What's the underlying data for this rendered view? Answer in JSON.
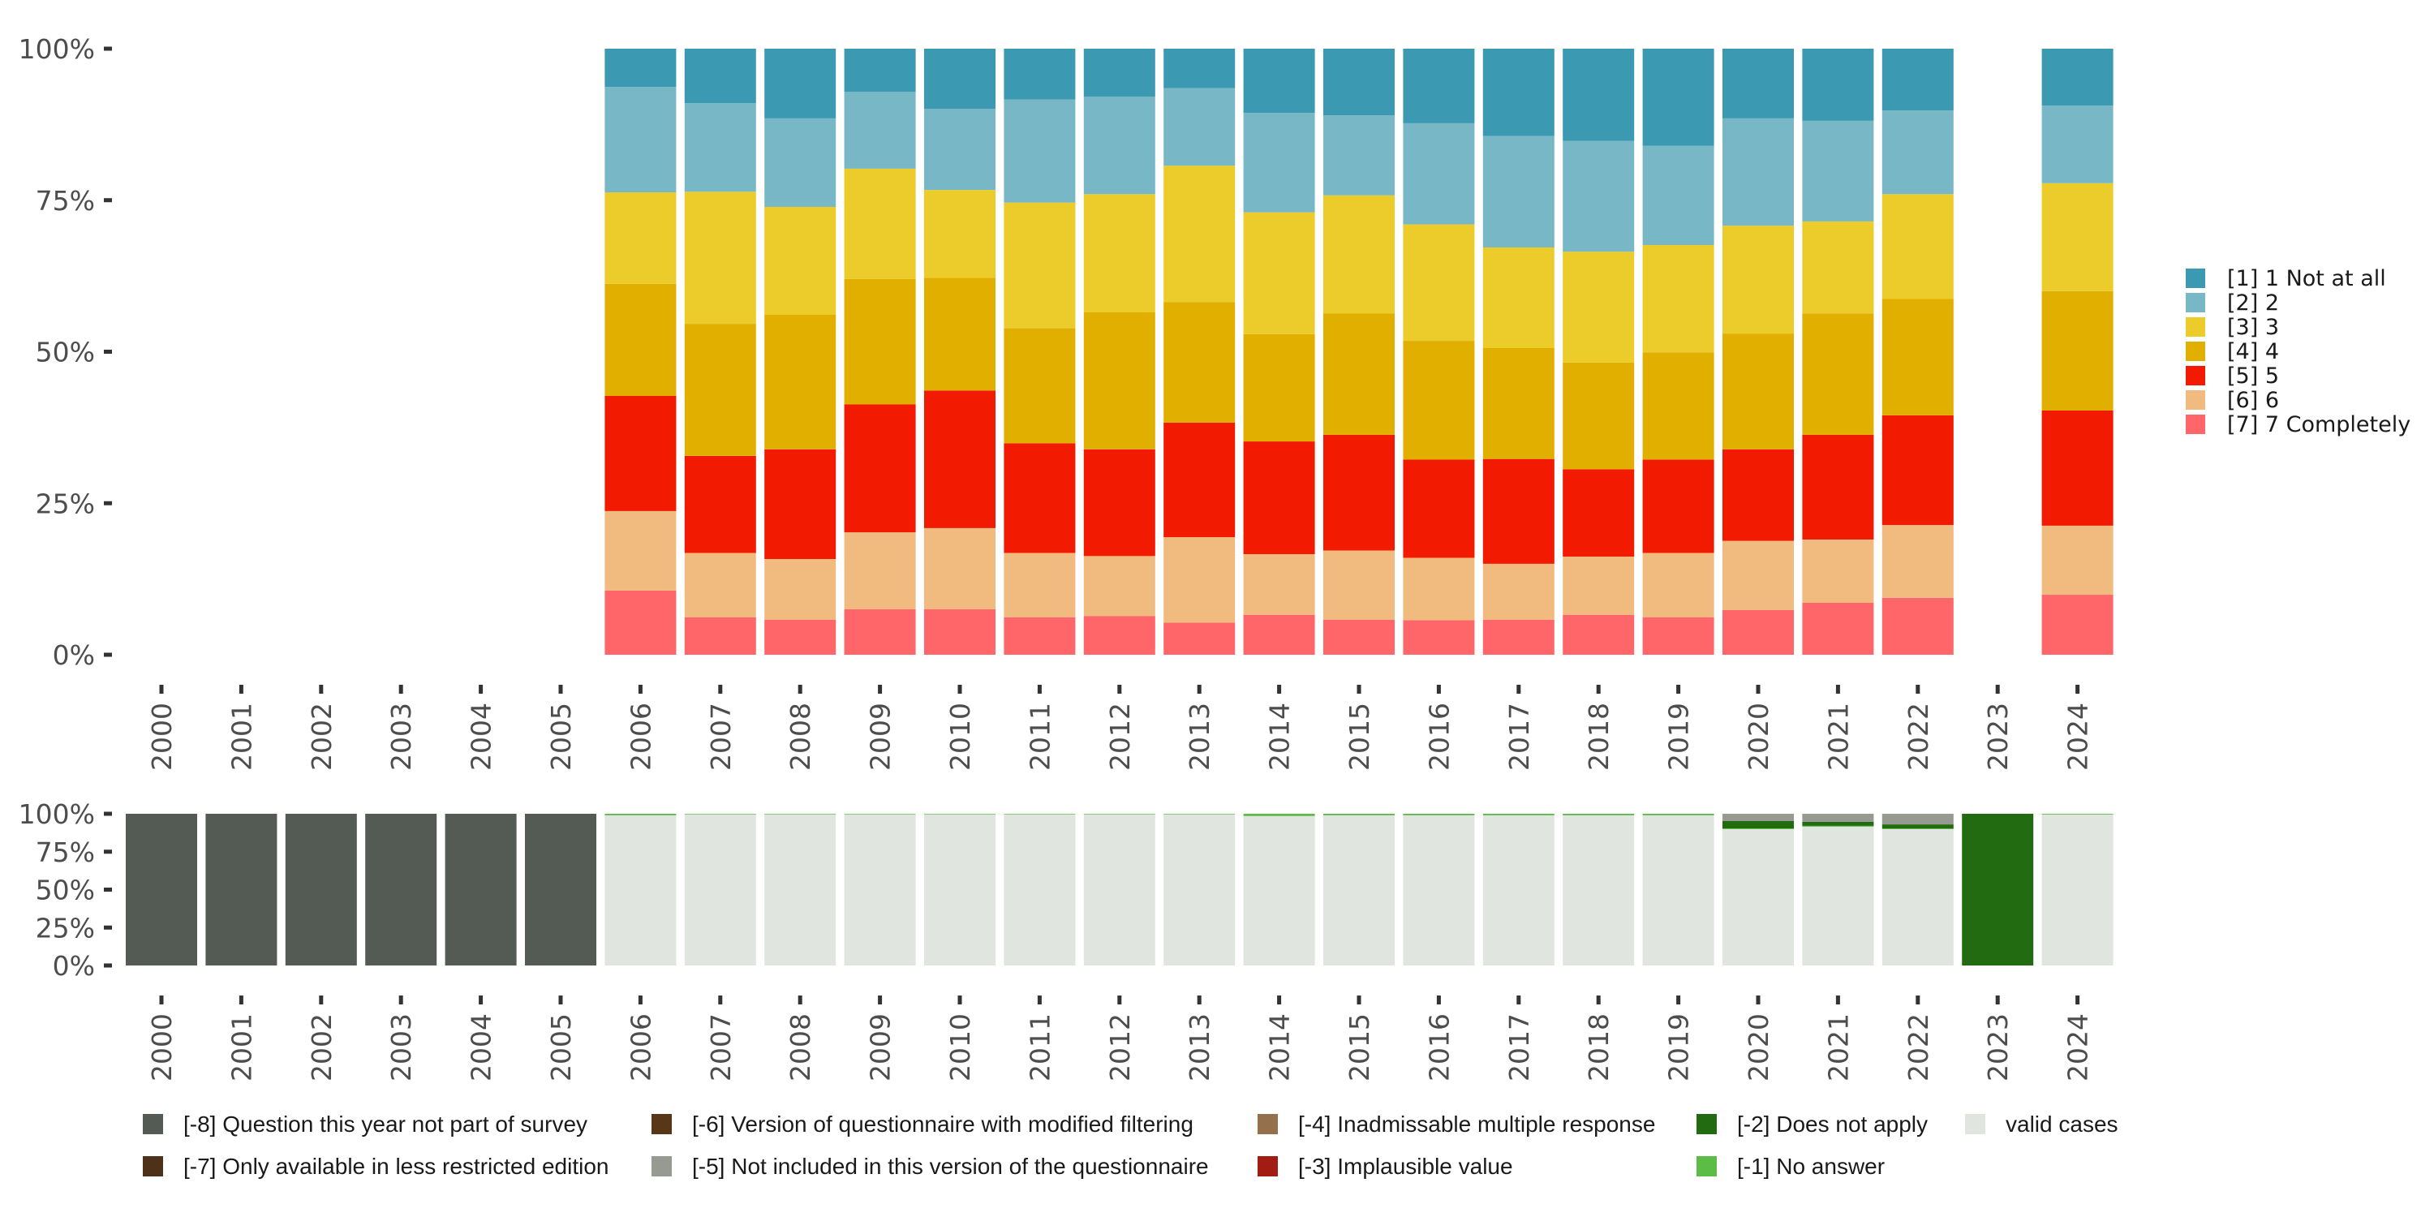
{
  "chart_data": [
    {
      "name": "responses",
      "type": "bar",
      "stacked": "percent",
      "title": "",
      "xlabel": "",
      "ylabel": "",
      "ylim": [
        0,
        100
      ],
      "ytick_labels": [
        "0%",
        "25%",
        "50%",
        "75%",
        "100%"
      ],
      "yticks": [
        0,
        25,
        50,
        75,
        100
      ],
      "grid": false,
      "legend_position": "right",
      "categories": [
        "2000",
        "2001",
        "2002",
        "2003",
        "2004",
        "2005",
        "2006",
        "2007",
        "2008",
        "2009",
        "2010",
        "2011",
        "2012",
        "2013",
        "2014",
        "2015",
        "2016",
        "2017",
        "2018",
        "2019",
        "2020",
        "2021",
        "2022",
        "2023",
        "2024"
      ],
      "series": [
        {
          "name": "[7] 7 Completely",
          "color": "#ff6669",
          "values": [
            null,
            null,
            null,
            null,
            null,
            null,
            10.6,
            6.2,
            5.8,
            7.5,
            7.5,
            6.2,
            6.4,
            5.3,
            6.6,
            5.8,
            5.7,
            5.8,
            6.6,
            6.2,
            7.4,
            8.6,
            9.4,
            null,
            9.9
          ]
        },
        {
          "name": "[6] 6",
          "color": "#f1bb7f",
          "values": [
            null,
            null,
            null,
            null,
            null,
            null,
            13.1,
            10.6,
            10.0,
            12.7,
            13.4,
            10.6,
            9.9,
            14.1,
            10.0,
            11.4,
            10.3,
            9.2,
            9.6,
            10.6,
            11.4,
            10.4,
            12.0,
            null,
            11.4
          ]
        },
        {
          "name": "[5] 5",
          "color": "#f21a00",
          "values": [
            null,
            null,
            null,
            null,
            null,
            null,
            19.0,
            16.0,
            18.1,
            21.1,
            22.7,
            18.1,
            17.6,
            18.9,
            18.6,
            19.1,
            16.2,
            17.3,
            14.4,
            15.4,
            15.1,
            17.3,
            18.1,
            null,
            19.0
          ]
        },
        {
          "name": "[4] 4",
          "color": "#e1af00",
          "values": [
            null,
            null,
            null,
            null,
            null,
            null,
            18.5,
            21.8,
            22.2,
            20.7,
            18.6,
            19.0,
            22.6,
            19.9,
            17.7,
            20.0,
            19.6,
            18.3,
            17.6,
            17.7,
            19.1,
            20.0,
            19.2,
            null,
            19.7
          ]
        },
        {
          "name": "[3] 3",
          "color": "#ebcc2a",
          "values": [
            null,
            null,
            null,
            null,
            null,
            null,
            15.1,
            21.8,
            17.8,
            18.2,
            14.5,
            20.7,
            19.5,
            22.5,
            20.1,
            19.5,
            19.2,
            16.6,
            18.3,
            17.7,
            17.8,
            15.2,
            17.3,
            null,
            17.8
          ]
        },
        {
          "name": "[2] 2",
          "color": "#78b7c5",
          "values": [
            null,
            null,
            null,
            null,
            null,
            null,
            17.4,
            14.6,
            14.6,
            12.7,
            13.4,
            17.0,
            16.1,
            12.8,
            16.4,
            13.2,
            16.7,
            18.4,
            18.3,
            16.4,
            17.7,
            16.6,
            13.8,
            null,
            12.8
          ]
        },
        {
          "name": "[1] 1 Not at all",
          "color": "#3b9ab2",
          "values": [
            null,
            null,
            null,
            null,
            null,
            null,
            6.3,
            9.0,
            11.5,
            7.1,
            9.9,
            8.4,
            7.9,
            6.5,
            10.6,
            11.0,
            12.3,
            14.4,
            15.2,
            16.0,
            11.5,
            11.9,
            10.2,
            null,
            9.4
          ]
        }
      ],
      "legend": [
        {
          "label": "[1] 1 Not at all",
          "color": "#3b9ab2"
        },
        {
          "label": "[2] 2",
          "color": "#78b7c5"
        },
        {
          "label": "[3] 3",
          "color": "#ebcc2a"
        },
        {
          "label": "[4] 4",
          "color": "#e1af00"
        },
        {
          "label": "[5] 5",
          "color": "#f21a00"
        },
        {
          "label": "[6] 6",
          "color": "#f1bb7f"
        },
        {
          "label": "[7] 7 Completely",
          "color": "#ff6669"
        }
      ]
    },
    {
      "name": "missing-values",
      "type": "bar",
      "stacked": "percent",
      "title": "",
      "xlabel": "",
      "ylabel": "",
      "ylim": [
        0,
        100
      ],
      "ytick_labels": [
        "0%",
        "25%",
        "50%",
        "75%",
        "100%"
      ],
      "yticks": [
        0,
        25,
        50,
        75,
        100
      ],
      "grid": false,
      "legend_position": "bottom",
      "categories": [
        "2000",
        "2001",
        "2002",
        "2003",
        "2004",
        "2005",
        "2006",
        "2007",
        "2008",
        "2009",
        "2010",
        "2011",
        "2012",
        "2013",
        "2014",
        "2015",
        "2016",
        "2017",
        "2018",
        "2019",
        "2020",
        "2021",
        "2022",
        "2023",
        "2024"
      ],
      "series": [
        {
          "name": "valid cases",
          "color": "#e0e5e0",
          "values": [
            0,
            0,
            0,
            0,
            0,
            0,
            99.0,
            99.6,
            99.6,
            99.6,
            99.6,
            99.6,
            99.6,
            99.6,
            98.5,
            99.0,
            99.0,
            99.0,
            99.0,
            99.0,
            89.9,
            91.5,
            89.8,
            0,
            99.5
          ]
        },
        {
          "name": "[-1] No answer",
          "color": "#5bbc46",
          "values": [
            0,
            0,
            0,
            0,
            0,
            0,
            1.0,
            0.4,
            0.4,
            0.4,
            0.4,
            0.4,
            0.4,
            0.4,
            1.5,
            1.0,
            1.0,
            1.0,
            1.0,
            1.0,
            0.5,
            0.5,
            0.5,
            0,
            0.5
          ]
        },
        {
          "name": "[-2] Does not apply",
          "color": "#226b10",
          "values": [
            0,
            0,
            0,
            0,
            0,
            0,
            0,
            0,
            0,
            0,
            0,
            0,
            0,
            0,
            0,
            0,
            0,
            0,
            0,
            0,
            4.8,
            2.7,
            2.7,
            100,
            0
          ]
        },
        {
          "name": "[-3] Implausible value",
          "color": "#a31c14",
          "values": [
            0,
            0,
            0,
            0,
            0,
            0,
            0,
            0,
            0,
            0,
            0,
            0,
            0,
            0,
            0,
            0,
            0,
            0,
            0,
            0,
            0,
            0,
            0,
            0,
            0
          ]
        },
        {
          "name": "[-4] Inadmissable multiple response",
          "color": "#94704d",
          "values": [
            0,
            0,
            0,
            0,
            0,
            0,
            0,
            0,
            0,
            0,
            0,
            0,
            0,
            0,
            0,
            0,
            0,
            0,
            0,
            0,
            0,
            0,
            0,
            0,
            0
          ]
        },
        {
          "name": "[-5] Not included in this version of the questionnaire",
          "color": "#979a91",
          "values": [
            0,
            0,
            0,
            0,
            0,
            0,
            0,
            0,
            0,
            0,
            0,
            0,
            0,
            0,
            0,
            0,
            0,
            0,
            0,
            0,
            4.8,
            5.3,
            7.0,
            0,
            0
          ]
        },
        {
          "name": "[-6] Version of questionnaire with modified filtering",
          "color": "#583719",
          "values": [
            0,
            0,
            0,
            0,
            0,
            0,
            0,
            0,
            0,
            0,
            0,
            0,
            0,
            0,
            0,
            0,
            0,
            0,
            0,
            0,
            0,
            0,
            0,
            0,
            0
          ]
        },
        {
          "name": "[-7] Only available in less restricted edition",
          "color": "#4d3219",
          "values": [
            0,
            0,
            0,
            0,
            0,
            0,
            0,
            0,
            0,
            0,
            0,
            0,
            0,
            0,
            0,
            0,
            0,
            0,
            0,
            0,
            0,
            0,
            0,
            0,
            0
          ]
        },
        {
          "name": "[-8] Question this year not part of survey",
          "color": "#545a54",
          "values": [
            100,
            100,
            100,
            100,
            100,
            100,
            0,
            0,
            0,
            0,
            0,
            0,
            0,
            0,
            0,
            0,
            0,
            0,
            0,
            0,
            0,
            0,
            0,
            0,
            0
          ]
        }
      ],
      "legend": [
        {
          "label": "[-8] Question this year not part of survey",
          "color": "#545a54"
        },
        {
          "label": "[-7] Only available in less restricted edition",
          "color": "#4d3219"
        },
        {
          "label": "[-6] Version of questionnaire with modified filtering",
          "color": "#583719"
        },
        {
          "label": "[-5] Not included in this version of the questionnaire",
          "color": "#979a91"
        },
        {
          "label": "[-4] Inadmissable multiple response",
          "color": "#94704d"
        },
        {
          "label": "[-3] Implausible value",
          "color": "#a31c14"
        },
        {
          "label": "[-2] Does not apply",
          "color": "#226b10"
        },
        {
          "label": "[-1] No answer",
          "color": "#5bbc46"
        },
        {
          "label": "valid cases",
          "color": "#e0e5e0"
        }
      ]
    }
  ]
}
